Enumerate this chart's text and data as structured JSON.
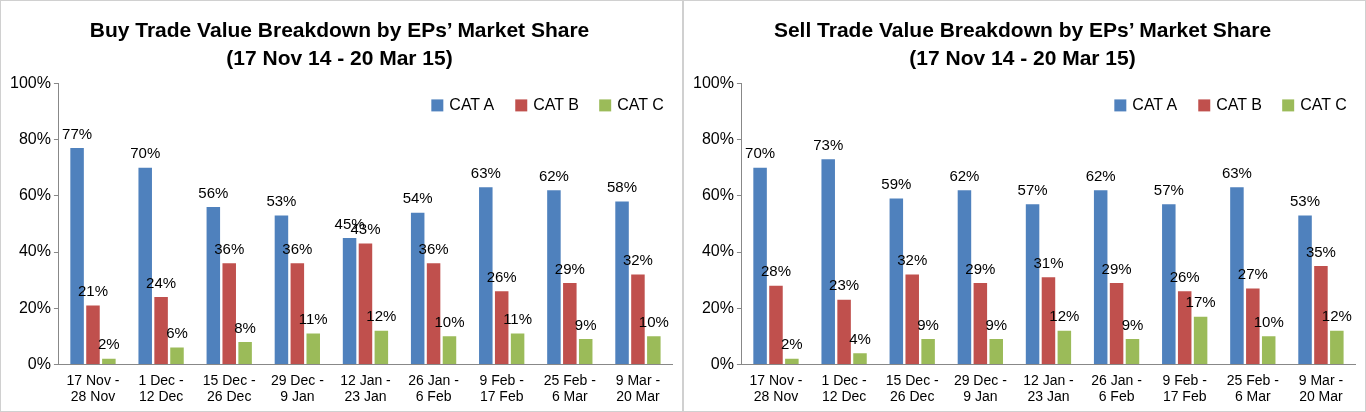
{
  "chart_data": [
    {
      "type": "bar",
      "title": "Buy Trade Value Breakdown by EPs’ Market Share",
      "subtitle": "(17 Nov 14 - 20 Mar 15)",
      "categories": [
        "17 Nov - 28 Nov",
        "1 Dec - 12 Dec",
        "15 Dec - 26 Dec",
        "29 Dec - 9 Jan",
        "12 Jan - 23 Jan",
        "26 Jan - 6 Feb",
        "9 Feb - 17 Feb",
        "25 Feb - 6 Mar",
        "9 Mar - 20 Mar"
      ],
      "series": [
        {
          "name": "CAT A",
          "color": "#4f81bd",
          "values": [
            77,
            70,
            56,
            53,
            45,
            54,
            63,
            62,
            58
          ],
          "value_labels": [
            "77%",
            "70%",
            "56%",
            "53%",
            "45%",
            "54%",
            "63%",
            "62%",
            "58%"
          ]
        },
        {
          "name": "CAT B",
          "color": "#c0504d",
          "values": [
            21,
            24,
            36,
            36,
            43,
            36,
            26,
            29,
            32
          ],
          "value_labels": [
            "21%",
            "24%",
            "36%",
            "36%",
            "43%",
            "36%",
            "26%",
            "29%",
            "32%"
          ]
        },
        {
          "name": "CAT C",
          "color": "#9bbb59",
          "values": [
            2,
            6,
            8,
            11,
            12,
            10,
            11,
            9,
            10
          ],
          "value_labels": [
            "2%",
            "6%",
            "8%",
            "11%",
            "12%",
            "10%",
            "11%",
            "9%",
            "10%"
          ]
        }
      ],
      "ylim": [
        0,
        100
      ],
      "yticks": [
        {
          "value": 0,
          "label": "0%"
        },
        {
          "value": 20,
          "label": "20%"
        },
        {
          "value": 40,
          "label": "40%"
        },
        {
          "value": 60,
          "label": "60%"
        },
        {
          "value": 80,
          "label": "80%"
        },
        {
          "value": 100,
          "label": "100%"
        }
      ],
      "grid": false,
      "legend": "top right"
    },
    {
      "type": "bar",
      "title": "Sell Trade Value Breakdown by EPs’ Market Share",
      "subtitle": "(17 Nov 14 - 20 Mar 15)",
      "categories": [
        "17 Nov - 28 Nov",
        "1 Dec - 12 Dec",
        "15 Dec - 26 Dec",
        "29 Dec - 9 Jan",
        "12 Jan - 23 Jan",
        "26 Jan - 6 Feb",
        "9 Feb - 17 Feb",
        "25 Feb - 6 Mar",
        "9 Mar - 20 Mar"
      ],
      "series": [
        {
          "name": "CAT A",
          "color": "#4f81bd",
          "values": [
            70,
            73,
            59,
            62,
            57,
            62,
            57,
            63,
            53
          ],
          "value_labels": [
            "70%",
            "73%",
            "59%",
            "62%",
            "57%",
            "62%",
            "57%",
            "63%",
            "53%"
          ]
        },
        {
          "name": "CAT B",
          "color": "#c0504d",
          "values": [
            28,
            23,
            32,
            29,
            31,
            29,
            26,
            27,
            35
          ],
          "value_labels": [
            "28%",
            "23%",
            "32%",
            "29%",
            "31%",
            "29%",
            "26%",
            "27%",
            "35%"
          ]
        },
        {
          "name": "CAT C",
          "color": "#9bbb59",
          "values": [
            2,
            4,
            9,
            9,
            12,
            9,
            17,
            10,
            12
          ],
          "value_labels": [
            "2%",
            "4%",
            "9%",
            "9%",
            "12%",
            "9%",
            "17%",
            "10%",
            "12%"
          ]
        }
      ],
      "ylim": [
        0,
        100
      ],
      "yticks": [
        {
          "value": 0,
          "label": "0%"
        },
        {
          "value": 20,
          "label": "20%"
        },
        {
          "value": 40,
          "label": "40%"
        },
        {
          "value": 60,
          "label": "60%"
        },
        {
          "value": 80,
          "label": "80%"
        },
        {
          "value": 100,
          "label": "100%"
        }
      ],
      "grid": false,
      "legend": "top right"
    }
  ]
}
